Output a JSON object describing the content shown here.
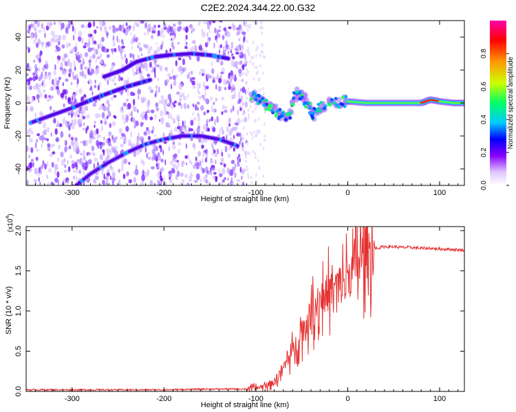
{
  "title": "C2E2.2024.344.22.00.G32",
  "colors": {
    "background": "#ffffff",
    "snr_line": "#e53030",
    "axis": "#000000"
  },
  "chart_data": [
    {
      "type": "heatmap",
      "xlabel": "Height of straight line (km)",
      "ylabel": "Frequency (Hz)",
      "xlim": [
        -350,
        127
      ],
      "ylim": [
        -50,
        50
      ],
      "x_ticks": [
        "-300",
        "-200",
        "-100",
        "0",
        "100"
      ],
      "y_ticks": [
        "40",
        "20",
        "0",
        "-20",
        "-40"
      ],
      "colorbar": {
        "label": "Normalized spectral amplitude",
        "range": [
          0.0,
          1.0
        ],
        "ticks": [
          "0.0",
          "0.2",
          "0.4",
          "0.6",
          "0.8"
        ],
        "colormap": [
          "#ffffff",
          "#e8d8ff",
          "#8800ff",
          "#0000ff",
          "#00ccff",
          "#00ff66",
          "#ccff00",
          "#ff9900",
          "#ff0000",
          "#ff00aa"
        ]
      },
      "features": [
        {
          "segment": "upper arc",
          "x": [
            -265,
            -245,
            -230,
            -210,
            -195,
            -170,
            -150,
            -130
          ],
          "y": [
            16,
            20,
            25,
            28,
            29,
            30,
            29,
            27
          ]
        },
        {
          "segment": "middle arc",
          "x": [
            -345,
            -300,
            -270,
            -240,
            -215
          ],
          "y": [
            -12,
            -3,
            4,
            10,
            14
          ]
        },
        {
          "segment": "lower arc",
          "x": [
            -300,
            -280,
            -260,
            -240,
            -220,
            -200,
            -180,
            -160,
            -140,
            -120
          ],
          "y": [
            -52,
            -43,
            -36,
            -30,
            -25,
            -22,
            -20,
            -20,
            -22,
            -26
          ]
        },
        {
          "segment": "converging echoes",
          "x": [
            -105,
            -95,
            -85,
            -75,
            -65,
            -55,
            -45,
            -38,
            -30,
            -15,
            0
          ],
          "y": [
            5,
            2,
            -3,
            -6,
            -10,
            6,
            2,
            -8,
            -2,
            0,
            1
          ]
        },
        {
          "segment": "steady line",
          "x": [
            0,
            20,
            40,
            60,
            80,
            90,
            100,
            115,
            127
          ],
          "y": [
            1,
            0,
            0,
            0,
            0,
            2,
            1,
            0,
            0
          ]
        }
      ]
    },
    {
      "type": "line",
      "xlabel": "Height of straight line (km)",
      "ylabel": "SNR (10 * v/v)",
      "y_multiplier": "(x10",
      "y_multiplier_exp": "4",
      "xlim": [
        -350,
        127
      ],
      "ylim": [
        0,
        2.05
      ],
      "x_ticks": [
        "-300",
        "-200",
        "-100",
        "0",
        "100"
      ],
      "y_ticks": [
        "0.0",
        "0.5",
        "1.0",
        "1.5",
        "2.0"
      ],
      "series": [
        {
          "x": [
            -350,
            -300,
            -250,
            -200,
            -150,
            -110,
            -100,
            -90,
            -80,
            -70,
            -60,
            -50,
            -40,
            -30,
            -20,
            -10,
            0,
            10,
            20,
            30,
            40,
            50,
            60,
            70,
            80,
            90,
            100,
            110,
            120,
            127
          ],
          "values": [
            0.02,
            0.02,
            0.02,
            0.02,
            0.03,
            0.03,
            0.04,
            0.07,
            0.12,
            0.3,
            0.5,
            0.75,
            0.95,
            1.15,
            1.25,
            1.3,
            1.4,
            1.6,
            1.72,
            1.78,
            1.8,
            1.8,
            1.79,
            1.79,
            1.78,
            1.78,
            1.77,
            1.77,
            1.76,
            1.76
          ]
        }
      ]
    }
  ]
}
